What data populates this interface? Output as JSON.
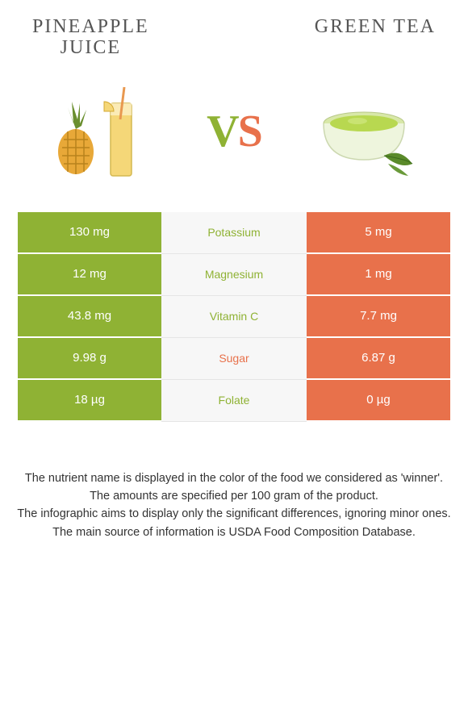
{
  "header": {
    "left_title_line1": "PINEAPPLE",
    "left_title_line2": "JUICE",
    "right_title": "GREEN TEA"
  },
  "vs": {
    "v": "V",
    "s": "S"
  },
  "colors": {
    "green": "#8fb234",
    "orange": "#e8714b",
    "mid_bg": "#f7f7f7",
    "mid_border": "#e5e5e5"
  },
  "rows": [
    {
      "left": "130 mg",
      "mid": "Potassium",
      "mid_color": "#8fb234",
      "right": "5 mg"
    },
    {
      "left": "12 mg",
      "mid": "Magnesium",
      "mid_color": "#8fb234",
      "right": "1 mg"
    },
    {
      "left": "43.8 mg",
      "mid": "Vitamin C",
      "mid_color": "#8fb234",
      "right": "7.7 mg"
    },
    {
      "left": "9.98 g",
      "mid": "Sugar",
      "mid_color": "#e8714b",
      "right": "6.87 g"
    },
    {
      "left": "18 µg",
      "mid": "Folate",
      "mid_color": "#8fb234",
      "right": "0 µg"
    }
  ],
  "footer": {
    "l1": "The nutrient name is displayed in the color of the food we considered as 'winner'.",
    "l2": "The amounts are specified per 100 gram of the product.",
    "l3": "The infographic aims to display only the significant differences, ignoring minor ones.",
    "l4": "The main source of information is USDA Food Composition Database."
  }
}
